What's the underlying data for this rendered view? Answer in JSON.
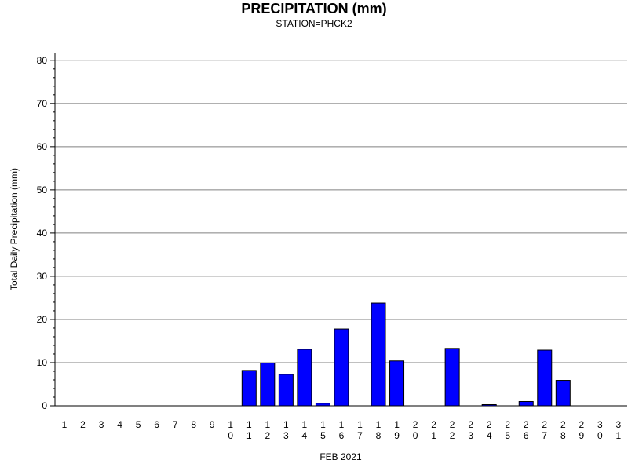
{
  "chart_data": {
    "type": "bar",
    "title": "PRECIPITATION (mm)",
    "subtitle": "STATION=PHCK2",
    "xlabel": "FEB 2021",
    "ylabel": "Total Daily Precipitation (mm)",
    "ylim": [
      0,
      80
    ],
    "yticks": [
      0,
      10,
      20,
      30,
      40,
      50,
      60,
      70,
      80
    ],
    "grid": true,
    "bar_color": "#0000ff",
    "categories": [
      "1",
      "2",
      "3",
      "4",
      "5",
      "6",
      "7",
      "8",
      "9",
      "10",
      "11",
      "12",
      "13",
      "14",
      "15",
      "16",
      "17",
      "18",
      "19",
      "20",
      "21",
      "22",
      "23",
      "24",
      "25",
      "26",
      "27",
      "28",
      "29",
      "30",
      "31"
    ],
    "values": [
      0,
      0,
      0,
      0,
      0,
      0,
      0,
      0,
      0,
      0,
      8.2,
      9.9,
      7.3,
      13.1,
      0.6,
      17.8,
      0,
      23.8,
      10.4,
      0,
      0,
      13.3,
      0,
      0.2,
      0,
      1.0,
      12.9,
      5.9,
      0,
      0,
      0
    ]
  }
}
